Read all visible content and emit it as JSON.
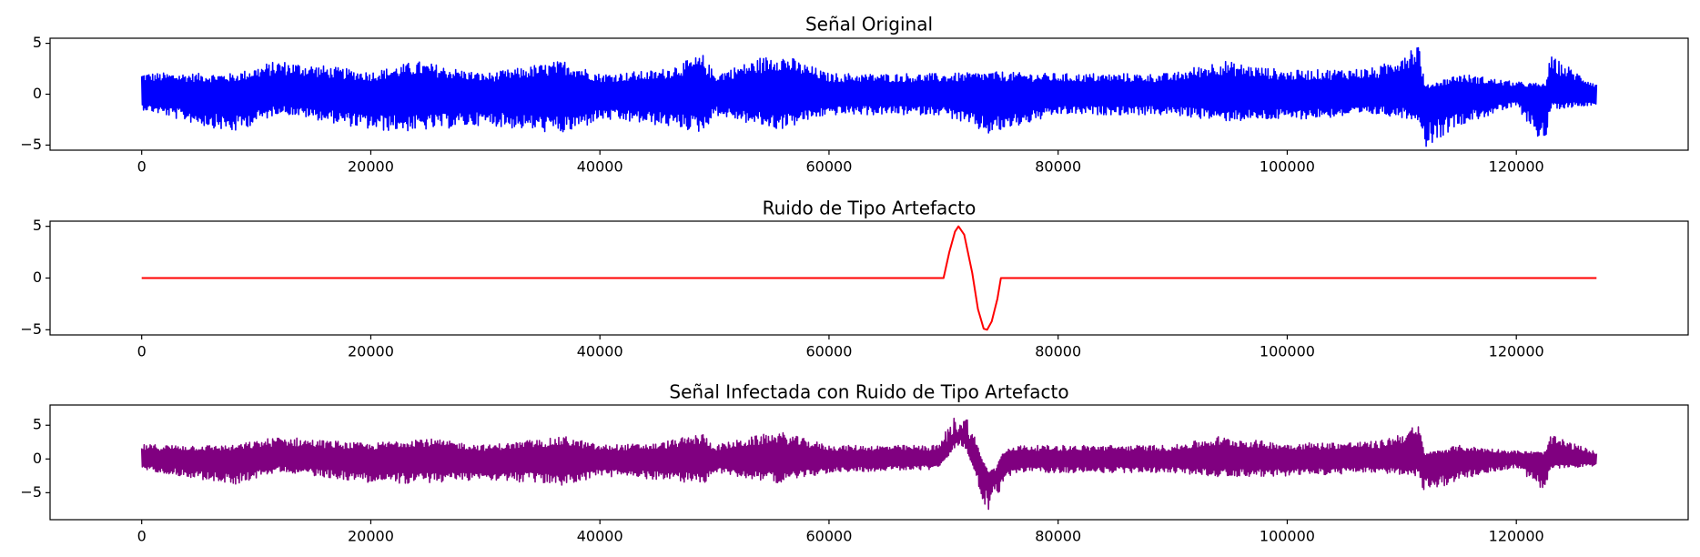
{
  "chart_data": [
    {
      "type": "line",
      "title": "Señal Original",
      "xlabel": "",
      "ylabel": "",
      "xlim": [
        -8000,
        135000
      ],
      "ylim": [
        -5.5,
        5.5
      ],
      "xticks": [
        0,
        20000,
        40000,
        60000,
        80000,
        100000,
        120000
      ],
      "yticks": [
        5,
        0,
        -5
      ],
      "grid": false,
      "series": [
        {
          "color": "#0000ff",
          "x": [
            0,
            8000,
            12000,
            20000,
            24000,
            30000,
            37000,
            40000,
            45000,
            49000,
            50000,
            55500,
            60000,
            70000,
            74000,
            80000,
            90000,
            94000,
            100000,
            108000,
            111500,
            112000,
            115000,
            120000,
            122500,
            123000,
            127000
          ],
          "y_upper": [
            2.1,
            2.0,
            3.3,
            2.2,
            3.2,
            2.0,
            3.3,
            2.0,
            2.3,
            3.8,
            2.0,
            4.1,
            2.0,
            2.0,
            2.2,
            2.0,
            2.0,
            3.3,
            2.3,
            2.6,
            5.2,
            0.8,
            2.0,
            1.2,
            1.0,
            3.7,
            1.0
          ],
          "y_lower": [
            -1.5,
            -3.8,
            -1.8,
            -3.5,
            -3.6,
            -3.0,
            -3.9,
            -2.5,
            -3.0,
            -3.7,
            -2.0,
            -3.5,
            -2.0,
            -2.0,
            -4.0,
            -2.0,
            -2.0,
            -2.6,
            -2.5,
            -2.0,
            -2.5,
            -5.2,
            -3.0,
            -1.2,
            -5.1,
            -1.5,
            -1.0
          ]
        }
      ]
    },
    {
      "type": "line",
      "title": "Ruido de Tipo Artefacto",
      "xlabel": "",
      "ylabel": "",
      "xlim": [
        -8000,
        135000
      ],
      "ylim": [
        -5.5,
        5.5
      ],
      "xticks": [
        0,
        20000,
        40000,
        60000,
        80000,
        100000,
        120000
      ],
      "yticks": [
        5,
        0,
        -5
      ],
      "grid": false,
      "series": [
        {
          "color": "#ff0000",
          "x": [
            0,
            70000,
            70500,
            71000,
            71300,
            71800,
            72500,
            73000,
            73500,
            73800,
            74200,
            74700,
            75000,
            127000
          ],
          "y": [
            0,
            0,
            2.5,
            4.5,
            5.0,
            4.2,
            0.5,
            -3.0,
            -4.9,
            -5.0,
            -4.2,
            -2.0,
            0,
            0
          ]
        }
      ]
    },
    {
      "type": "line",
      "title": "Señal Infectada con Ruido de Tipo Artefacto",
      "xlabel": "",
      "ylabel": "",
      "xlim": [
        -8000,
        135000
      ],
      "ylim": [
        -9,
        8
      ],
      "xticks": [
        0,
        20000,
        40000,
        60000,
        80000,
        100000,
        120000
      ],
      "yticks": [
        5,
        0,
        -5
      ],
      "grid": false,
      "series": [
        {
          "color": "#800080",
          "x": [
            0,
            8000,
            12000,
            20000,
            24000,
            30000,
            37000,
            40000,
            45000,
            49000,
            50000,
            55500,
            60000,
            69500,
            70500,
            71300,
            72000,
            72800,
            73500,
            74000,
            74500,
            75200,
            76000,
            80000,
            90000,
            94000,
            100000,
            108000,
            111500,
            112000,
            115000,
            120000,
            122500,
            123000,
            127000
          ],
          "y_upper": [
            2.1,
            2.0,
            3.3,
            2.2,
            3.2,
            2.0,
            3.3,
            2.0,
            2.3,
            3.8,
            2.0,
            4.1,
            2.0,
            2.0,
            5.0,
            7.0,
            6.5,
            3.0,
            -1.0,
            -2.5,
            -2.0,
            1.0,
            2.0,
            2.0,
            2.0,
            3.3,
            2.3,
            2.6,
            5.0,
            0.8,
            2.0,
            1.2,
            1.0,
            3.5,
            1.0
          ],
          "y_lower": [
            -1.5,
            -3.8,
            -1.8,
            -3.5,
            -3.6,
            -3.0,
            -3.9,
            -2.5,
            -3.0,
            -3.7,
            -2.0,
            -3.5,
            -2.0,
            -1.5,
            1.0,
            3.5,
            2.0,
            -3.0,
            -7.0,
            -8.5,
            -6.5,
            -4.5,
            -2.0,
            -2.0,
            -2.0,
            -2.6,
            -2.5,
            -2.0,
            -2.5,
            -5.2,
            -3.0,
            -1.2,
            -5.0,
            -1.5,
            -1.0
          ]
        }
      ]
    }
  ]
}
